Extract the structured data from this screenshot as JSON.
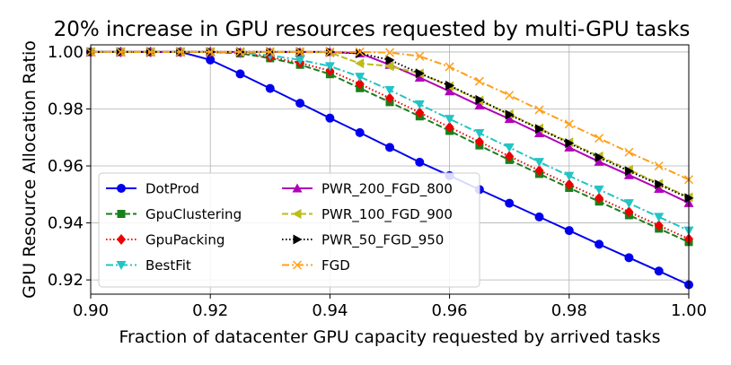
{
  "chart_data": {
    "type": "line",
    "title": "20% increase in GPU resources requested by multi-GPU tasks",
    "xlabel": "Fraction of datacenter GPU capacity requested by arrived tasks",
    "ylabel": "GPU Resource Allocation Ratio",
    "xlim": [
      0.9,
      1.0
    ],
    "ylim": [
      0.915,
      1.0025
    ],
    "grid": true,
    "legend_position": "lower-left",
    "x_ticks": [
      "0.90",
      "0.92",
      "0.94",
      "0.96",
      "0.98",
      "1.00"
    ],
    "y_ticks": [
      "0.92",
      "0.94",
      "0.96",
      "0.98",
      "1.00"
    ],
    "x": [
      0.9,
      0.905,
      0.91,
      0.915,
      0.92,
      0.925,
      0.93,
      0.935,
      0.94,
      0.945,
      0.95,
      0.955,
      0.96,
      0.965,
      0.97,
      0.975,
      0.98,
      0.985,
      0.99,
      0.995,
      1.0
    ],
    "series": [
      {
        "name": "DotProd",
        "color": "#0000ee",
        "marker": "circle",
        "dash": "solid",
        "values": [
          1.0,
          1.0,
          1.0,
          1.0,
          0.9972,
          0.9923,
          0.9872,
          0.982,
          0.9768,
          0.9717,
          0.9665,
          0.9613,
          0.9566,
          0.9517,
          0.9469,
          0.9421,
          0.9373,
          0.9325,
          0.9278,
          0.9231,
          0.9183
        ]
      },
      {
        "name": "GpuClustering",
        "color": "#1a7f1a",
        "marker": "square",
        "dash": "dashed",
        "values": [
          1.0,
          1.0,
          1.0,
          1.0,
          1.0,
          0.9995,
          0.9978,
          0.9955,
          0.9922,
          0.9873,
          0.9824,
          0.9774,
          0.9723,
          0.9672,
          0.9621,
          0.9572,
          0.9523,
          0.9475,
          0.9427,
          0.938,
          0.9333
        ]
      },
      {
        "name": "GpuPacking",
        "color": "#ee0000",
        "marker": "diamond",
        "dash": "dotted",
        "values": [
          1.0,
          1.0,
          1.0,
          1.0,
          1.0,
          0.9997,
          0.9982,
          0.9962,
          0.9934,
          0.9888,
          0.9838,
          0.9787,
          0.9736,
          0.9685,
          0.9634,
          0.9584,
          0.9535,
          0.9487,
          0.9439,
          0.9391,
          0.9344
        ]
      },
      {
        "name": "BestFit",
        "color": "#22c4c4",
        "marker": "triangle-down",
        "dash": "dashdot",
        "values": [
          1.0,
          1.0,
          1.0,
          1.0,
          1.0,
          0.9998,
          0.9988,
          0.9972,
          0.995,
          0.9913,
          0.9866,
          0.9816,
          0.9765,
          0.9715,
          0.9665,
          0.9614,
          0.9565,
          0.9517,
          0.9469,
          0.9421,
          0.9373
        ]
      },
      {
        "name": "PWR_200_FGD_800",
        "color": "#b000b8",
        "marker": "triangle-up",
        "dash": "solid",
        "values": [
          1.0,
          1.0,
          1.0,
          1.0,
          1.0,
          1.0,
          1.0,
          1.0,
          1.0,
          0.9995,
          0.9955,
          0.991,
          0.9862,
          0.9812,
          0.9765,
          0.9715,
          0.9665,
          0.9615,
          0.9568,
          0.952,
          0.947
        ]
      },
      {
        "name": "PWR_100_FGD_900",
        "color": "#bcbc1a",
        "marker": "triangle-left",
        "dash": "dashed",
        "values": [
          1.0,
          1.0,
          1.0,
          1.0,
          1.0,
          1.0,
          1.0,
          1.0,
          0.9998,
          0.996,
          0.995,
          0.9925,
          0.988,
          0.983,
          0.9782,
          0.9732,
          0.9683,
          0.9634,
          0.9587,
          0.9538,
          0.949
        ]
      },
      {
        "name": "PWR_50_FGD_950",
        "color": "#000000",
        "marker": "triangle-right",
        "dash": "dotted",
        "values": [
          1.0,
          1.0,
          1.0,
          1.0,
          1.0,
          1.0,
          1.0,
          1.0,
          1.0,
          0.9995,
          0.9972,
          0.9925,
          0.9882,
          0.9832,
          0.978,
          0.973,
          0.968,
          0.963,
          0.9582,
          0.9535,
          0.9487
        ]
      },
      {
        "name": "FGD",
        "color": "#ff9f1a",
        "marker": "x",
        "dash": "dashdot",
        "values": [
          1.0,
          1.0,
          1.0,
          1.0,
          1.0,
          1.0,
          1.0,
          1.0,
          1.0,
          1.0,
          0.9998,
          0.9985,
          0.9948,
          0.9897,
          0.9848,
          0.9797,
          0.9747,
          0.9697,
          0.9648,
          0.96,
          0.9552
        ]
      }
    ]
  }
}
